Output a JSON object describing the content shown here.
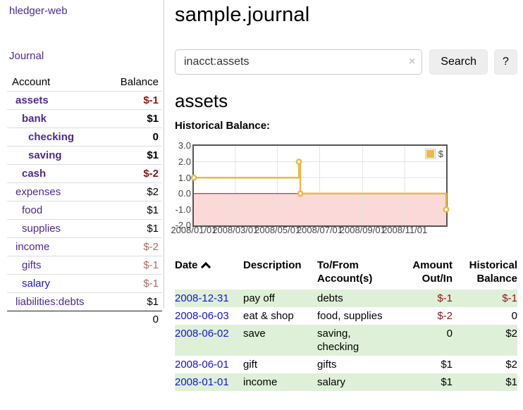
{
  "sidebar": {
    "brand": "hledger-web",
    "journal_label": "Journal",
    "accounts_table": {
      "account_header": "Account",
      "balance_header": "Balance",
      "rows": [
        {
          "label": "assets",
          "level": 1,
          "bold": true,
          "link": "visited",
          "balance": "$-1",
          "balance_style": "neg"
        },
        {
          "label": "bank",
          "level": 2,
          "bold": true,
          "link": "visited",
          "balance": "$1",
          "balance_style": "pos"
        },
        {
          "label": "checking",
          "level": 3,
          "bold": true,
          "link": "visited",
          "balance": "0",
          "balance_style": "pos"
        },
        {
          "label": "saving",
          "level": 3,
          "bold": true,
          "link": "visited",
          "balance": "$1",
          "balance_style": "pos"
        },
        {
          "label": "cash",
          "level": 2,
          "bold": true,
          "link": "visited",
          "balance": "$-2",
          "balance_style": "neg"
        },
        {
          "label": "expenses",
          "level": 1,
          "bold": false,
          "link": "visited",
          "balance": "$2",
          "balance_style": "pos"
        },
        {
          "label": "food",
          "level": 2,
          "bold": false,
          "link": "visited",
          "balance": "$1",
          "balance_style": "pos"
        },
        {
          "label": "supplies",
          "level": 2,
          "bold": false,
          "link": "visited",
          "balance": "$1",
          "balance_style": "pos"
        },
        {
          "label": "income",
          "level": 1,
          "bold": false,
          "link": "visited",
          "balance": "$-2",
          "balance_style": "neg-muted"
        },
        {
          "label": "gifts",
          "level": 2,
          "bold": false,
          "link": "visited",
          "balance": "$-1",
          "balance_style": "neg-muted"
        },
        {
          "label": "salary",
          "level": 2,
          "bold": false,
          "link": "new",
          "balance": "$-1",
          "balance_style": "neg-muted"
        },
        {
          "label": "liabilities:debts",
          "level": 1,
          "bold": false,
          "link": "visited",
          "balance": "$1",
          "balance_style": "pos"
        }
      ],
      "total": "0"
    }
  },
  "main": {
    "title": "sample.journal",
    "search": {
      "value": "inacct:assets",
      "clear_label": "×",
      "button_label": "Search",
      "help_label": "?"
    },
    "account_heading": "assets",
    "chart_label": "Historical Balance:"
  },
  "chart_data": {
    "type": "line",
    "title": "Historical Balance",
    "step": true,
    "series": [
      {
        "name": "$",
        "color": "#e9ba45",
        "points_day_value": [
          [
            0,
            1
          ],
          [
            152,
            2
          ],
          [
            154,
            0
          ],
          [
            365,
            -1
          ]
        ],
        "point_dates": [
          "2008-01-01",
          "2008-06-01",
          "2008-06-03",
          "2008-12-31"
        ]
      }
    ],
    "x_domain_days": [
      0,
      365
    ],
    "x_ticks": [
      {
        "day": 0,
        "label": "2008/01/01"
      },
      {
        "day": 60,
        "label": "2008/03/01"
      },
      {
        "day": 121,
        "label": "2008/05/01"
      },
      {
        "day": 182,
        "label": "2008/07/01"
      },
      {
        "day": 244,
        "label": "2008/09/01"
      },
      {
        "day": 305,
        "label": "2008/11/01"
      }
    ],
    "ylim": [
      -2,
      3
    ],
    "y_ticks": [
      {
        "v": 3,
        "label": "3.0"
      },
      {
        "v": 2,
        "label": "2.0"
      },
      {
        "v": 1,
        "label": "1.0"
      },
      {
        "v": 0,
        "label": "0.0"
      },
      {
        "v": -1,
        "label": "-1.0"
      },
      {
        "v": -2,
        "label": "-2.0"
      }
    ],
    "legend": {
      "label": "$",
      "position": "top-right"
    },
    "grid": true,
    "colors": {
      "grid": "#e3e3e3",
      "border": "#545454",
      "zero_line": "#8f1414",
      "negative_fill": "#fbd9d9",
      "point_fill": "#ffffff"
    }
  },
  "register": {
    "headers": {
      "date": "Date",
      "description": "Description",
      "accounts": "To/From Account(s)",
      "amount": "Amount Out/In",
      "balance": "Historical Balance"
    },
    "rows": [
      {
        "date": "2008-12-31",
        "description": "pay off",
        "accounts": "debts",
        "amount": "$-1",
        "amount_neg": true,
        "balance": "$-1",
        "balance_neg": true
      },
      {
        "date": "2008-06-03",
        "description": "eat & shop",
        "accounts": "food, supplies",
        "amount": "$-2",
        "amount_neg": true,
        "balance": "0",
        "balance_neg": false
      },
      {
        "date": "2008-06-02",
        "description": "save",
        "accounts": "saving, checking",
        "amount": "0",
        "amount_neg": false,
        "balance": "$2",
        "balance_neg": false
      },
      {
        "date": "2008-06-01",
        "description": "gift",
        "accounts": "gifts",
        "amount": "$1",
        "amount_neg": false,
        "balance": "$2",
        "balance_neg": false
      },
      {
        "date": "2008-01-01",
        "description": "income",
        "accounts": "salary",
        "amount": "$1",
        "amount_neg": false,
        "balance": "$1",
        "balance_neg": false
      }
    ]
  }
}
